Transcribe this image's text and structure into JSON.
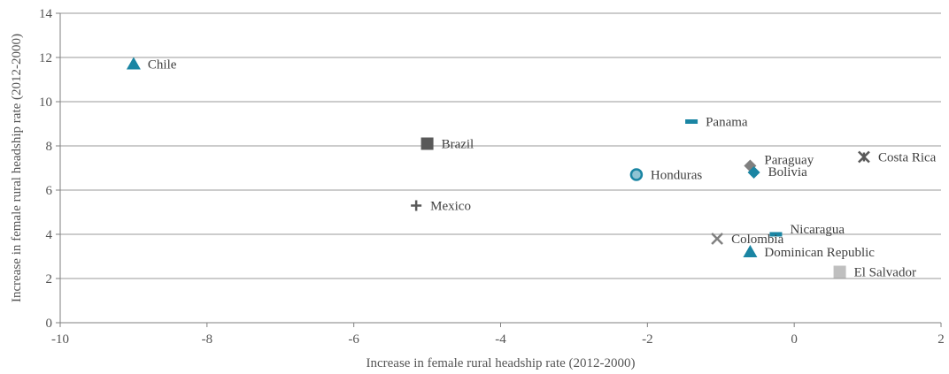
{
  "chart_data": {
    "type": "scatter",
    "title": "",
    "xlabel": "Increase in female rural headship rate (2012-2000)",
    "ylabel": "Increase in female rural headship rate (2012-2000)",
    "xlim": [
      -10,
      2
    ],
    "ylim": [
      0,
      14
    ],
    "x_ticks": [
      "-10",
      "-8",
      "-6",
      "-4",
      "-2",
      "0",
      "2"
    ],
    "y_ticks": [
      "0",
      "2",
      "4",
      "6",
      "8",
      "10",
      "12",
      "14"
    ],
    "grid": "horizontal",
    "legend": "none",
    "points": [
      {
        "label": "Chile",
        "x": -9.0,
        "y": 11.7,
        "marker": "triangle",
        "color": "#1a85a3"
      },
      {
        "label": "Brazil",
        "x": -5.0,
        "y": 8.1,
        "marker": "square",
        "color": "#595959"
      },
      {
        "label": "Mexico",
        "x": -5.15,
        "y": 5.3,
        "marker": "plus",
        "color": "#595959"
      },
      {
        "label": "Panama",
        "x": -1.4,
        "y": 9.1,
        "marker": "dash",
        "color": "#1a85a3"
      },
      {
        "label": "Honduras",
        "x": -2.15,
        "y": 6.7,
        "marker": "circle",
        "color": "#1a85a3"
      },
      {
        "label": "Paraguay",
        "x": -0.6,
        "y": 7.1,
        "marker": "diamond",
        "color": "#808080"
      },
      {
        "label": "Bolivia",
        "x": -0.55,
        "y": 6.8,
        "marker": "diamond",
        "color": "#1a85a3"
      },
      {
        "label": "Costa Rica",
        "x": 0.95,
        "y": 7.5,
        "marker": "star-x",
        "color": "#595959"
      },
      {
        "label": "Nicaragua",
        "x": -0.25,
        "y": 4.0,
        "marker": "dash",
        "color": "#1a85a3"
      },
      {
        "label": "Colombia",
        "x": -1.05,
        "y": 3.8,
        "marker": "x",
        "color": "#808080"
      },
      {
        "label": "Dominican Republic",
        "x": -0.6,
        "y": 3.2,
        "marker": "triangle",
        "color": "#1a85a3"
      },
      {
        "label": "El Salvador",
        "x": 0.62,
        "y": 2.3,
        "marker": "square",
        "color": "#bfbfbf"
      }
    ]
  }
}
